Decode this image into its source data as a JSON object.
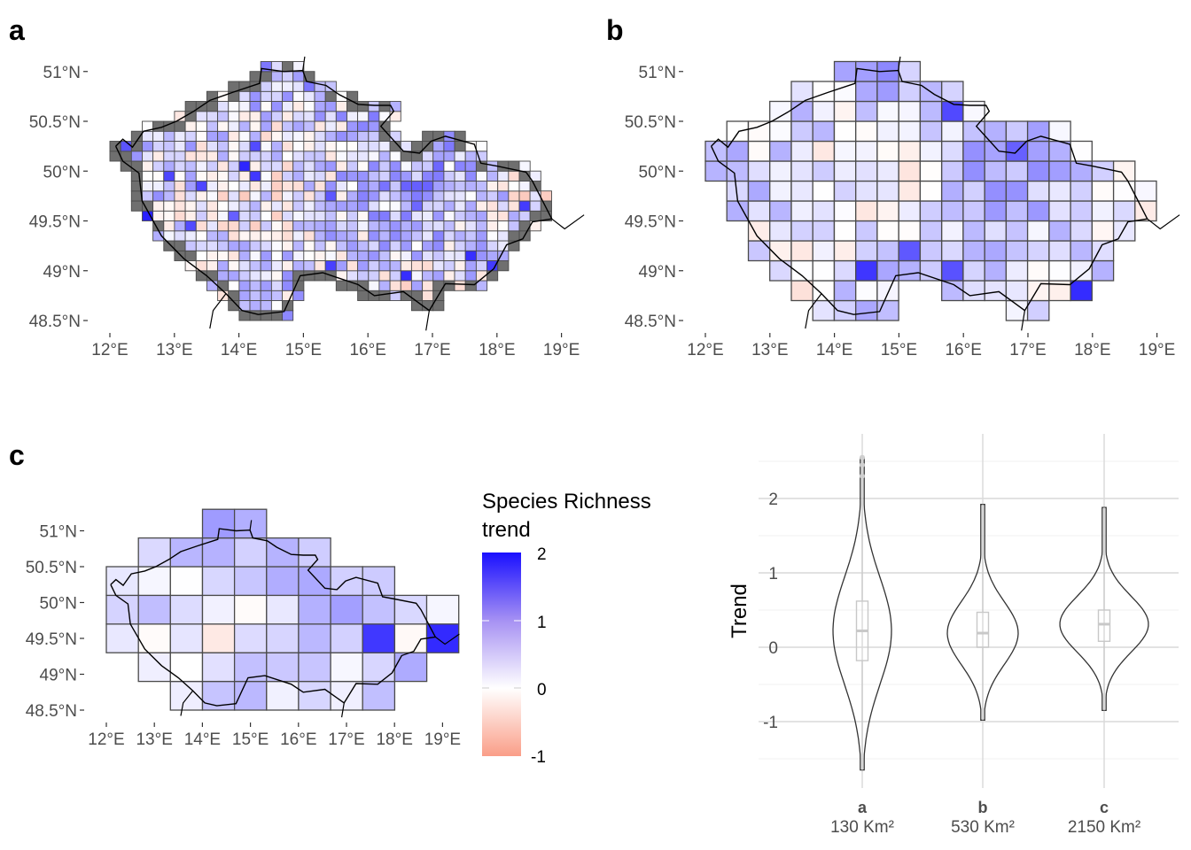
{
  "colors": {
    "high": "#1a10ff",
    "mid": "#ffffff",
    "low": "#fa9e88",
    "missing": "#6f6f6f",
    "cell_border": "#4a4a4a",
    "country_border": "#000000"
  },
  "chart_data": [
    {
      "type": "heatmap",
      "panel": "a",
      "x_ticks": [
        "12°E",
        "13°E",
        "14°E",
        "15°E",
        "16°E",
        "17°E",
        "18°E",
        "19°E"
      ],
      "y_ticks": [
        "51°N",
        "50.5°N",
        "50°N",
        "49.5°N",
        "49°N",
        "48.5°N"
      ],
      "xlim": [
        12,
        19
      ],
      "ylim": [
        48.5,
        51
      ],
      "cell_size_deg": [
        0.167,
        0.1
      ],
      "fill": "Species Richness trend",
      "fill_range": [
        -1,
        2
      ]
    },
    {
      "type": "heatmap",
      "panel": "b",
      "x_ticks": [
        "12°E",
        "13°E",
        "14°E",
        "15°E",
        "16°E",
        "17°E",
        "18°E",
        "19°E"
      ],
      "y_ticks": [
        "51°N",
        "50.5°N",
        "50°N",
        "49.5°N",
        "49°N",
        "48.5°N"
      ],
      "xlim": [
        12,
        19
      ],
      "ylim": [
        48.5,
        51
      ],
      "cell_size_deg": [
        0.333,
        0.2
      ],
      "fill": "Species Richness trend",
      "fill_range": [
        -1,
        2
      ]
    },
    {
      "type": "heatmap",
      "panel": "c",
      "x_ticks": [
        "12°E",
        "13°E",
        "14°E",
        "15°E",
        "16°E",
        "17°E",
        "18°E",
        "19°E"
      ],
      "y_ticks": [
        "51°N",
        "50.5°N",
        "50°N",
        "49.5°N",
        "49°N",
        "48.5°N"
      ],
      "xlim": [
        12,
        19
      ],
      "ylim": [
        48.5,
        51
      ],
      "cell_size_deg": [
        0.667,
        0.4
      ],
      "fill": "Species Richness trend",
      "fill_range": [
        -1,
        2
      ]
    },
    {
      "type": "violin",
      "panel": "violin",
      "ylabel": "Trend",
      "ylim": [
        -1.7,
        2.6
      ],
      "y_ticks": [
        -1,
        0,
        1,
        2
      ],
      "categories": [
        {
          "letter": "a",
          "area": "130 Km²",
          "min": -1.65,
          "q1": -0.18,
          "median": 0.22,
          "q3": 0.62,
          "max": 2.55
        },
        {
          "letter": "b",
          "area": "530 Km²",
          "min": -0.98,
          "q1": 0.0,
          "median": 0.19,
          "q3": 0.47,
          "max": 1.92
        },
        {
          "letter": "c",
          "area": "2150 Km²",
          "min": -0.85,
          "q1": 0.08,
          "median": 0.31,
          "q3": 0.5,
          "max": 1.88
        }
      ]
    }
  ],
  "legend": {
    "title_line1": "Species Richness",
    "title_line2": "trend",
    "labels": [
      "2",
      "1",
      "0",
      "-1"
    ]
  }
}
